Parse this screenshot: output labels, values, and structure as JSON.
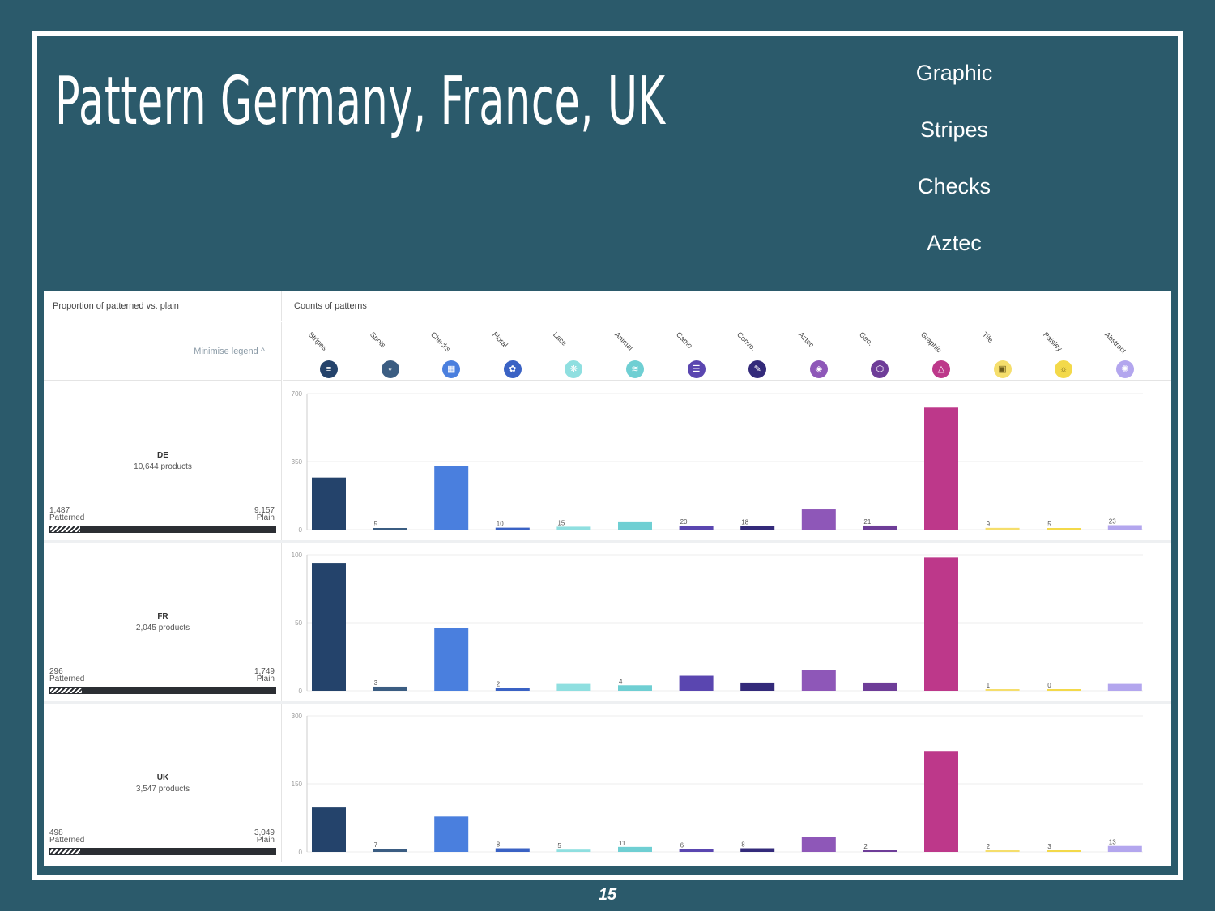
{
  "slide": {
    "title": "Pattern Germany, France, UK",
    "keywords": [
      "Graphic",
      "Stripes",
      "Checks",
      "Aztec"
    ],
    "page_number": "15"
  },
  "panel": {
    "left_header": "Proportion of patterned vs. plain",
    "right_header": "Counts of patterns",
    "minimise_label": "Minimise legend ^"
  },
  "legend": [
    {
      "name": "Stripes",
      "color": "#24436b",
      "icon": "stripes-icon"
    },
    {
      "name": "Spots",
      "color": "#3b5d82",
      "icon": "spots-icon"
    },
    {
      "name": "Checks",
      "color": "#4a7fde",
      "icon": "checks-icon"
    },
    {
      "name": "Floral",
      "color": "#3a62c4",
      "icon": "floral-icon"
    },
    {
      "name": "Lace",
      "color": "#8fdfe0",
      "icon": "lace-icon"
    },
    {
      "name": "Animal",
      "color": "#6fcfd3",
      "icon": "animal-icon"
    },
    {
      "name": "Camo",
      "color": "#5a46b0",
      "icon": "camo-icon"
    },
    {
      "name": "Convo.",
      "color": "#332a7a",
      "icon": "conversational-icon"
    },
    {
      "name": "Aztec",
      "color": "#8e57b8",
      "icon": "aztec-icon"
    },
    {
      "name": "Geo.",
      "color": "#6e3d98",
      "icon": "geo-icon"
    },
    {
      "name": "Graphic",
      "color": "#bd388a",
      "icon": "graphic-icon"
    },
    {
      "name": "Tile",
      "color": "#f5de6c",
      "icon": "tile-icon"
    },
    {
      "name": "Paisley",
      "color": "#f3d94a",
      "icon": "paisley-icon"
    },
    {
      "name": "Abstract",
      "color": "#b3a6ee",
      "icon": "abstract-icon"
    }
  ],
  "countries": [
    {
      "code": "DE",
      "products": "10,644 products",
      "patterned": "1,487",
      "plain": "9,157",
      "patterned_label": "Patterned",
      "plain_label": "Plain",
      "patterned_fraction": 0.14
    },
    {
      "code": "FR",
      "products": "2,045 products",
      "patterned": "296",
      "plain": "1,749",
      "patterned_label": "Patterned",
      "plain_label": "Plain",
      "patterned_fraction": 0.145
    },
    {
      "code": "UK",
      "products": "3,547 products",
      "patterned": "498",
      "plain": "3,049",
      "patterned_label": "Patterned",
      "plain_label": "Plain",
      "patterned_fraction": 0.14
    }
  ],
  "chart_data": [
    {
      "type": "bar",
      "title": "DE",
      "categories": [
        "Stripes",
        "Spots",
        "Checks",
        "Floral",
        "Lace",
        "Animal",
        "Camo",
        "Convo.",
        "Aztec",
        "Geo.",
        "Graphic",
        "Tile",
        "Paisley",
        "Abstract"
      ],
      "values": [
        268,
        5,
        328,
        10,
        15,
        38,
        20,
        18,
        104,
        21,
        628,
        9,
        5,
        23
      ],
      "value_labels": [
        "",
        "5",
        "",
        "10",
        "15",
        "",
        "20",
        "18",
        "",
        "21",
        "",
        "9",
        "5",
        "23"
      ],
      "yticks": [
        "0",
        "350",
        "700"
      ],
      "ylim": [
        0,
        700
      ]
    },
    {
      "type": "bar",
      "title": "FR",
      "categories": [
        "Stripes",
        "Spots",
        "Checks",
        "Floral",
        "Lace",
        "Animal",
        "Camo",
        "Convo.",
        "Aztec",
        "Geo.",
        "Graphic",
        "Tile",
        "Paisley",
        "Abstract"
      ],
      "values": [
        94,
        3,
        46,
        2,
        5,
        4,
        11,
        6,
        15,
        6,
        98,
        1,
        0.5,
        5
      ],
      "value_labels": [
        "",
        "3",
        "",
        "2",
        "",
        "4",
        "",
        "",
        "",
        "",
        "",
        "1",
        "0",
        ""
      ],
      "yticks": [
        "0",
        "50",
        "100"
      ],
      "ylim": [
        0,
        100
      ]
    },
    {
      "type": "bar",
      "title": "UK",
      "categories": [
        "Stripes",
        "Spots",
        "Checks",
        "Floral",
        "Lace",
        "Animal",
        "Camo",
        "Convo.",
        "Aztec",
        "Geo.",
        "Graphic",
        "Tile",
        "Paisley",
        "Abstract"
      ],
      "values": [
        98,
        7,
        78,
        8,
        5,
        11,
        6,
        8,
        33,
        2,
        221,
        2,
        3,
        13
      ],
      "value_labels": [
        "",
        "7",
        "",
        "8",
        "5",
        "11",
        "6",
        "8",
        "",
        "2",
        "",
        "2",
        "3",
        "13"
      ],
      "yticks": [
        "0",
        "150",
        "300"
      ],
      "ylim": [
        0,
        300
      ]
    }
  ]
}
